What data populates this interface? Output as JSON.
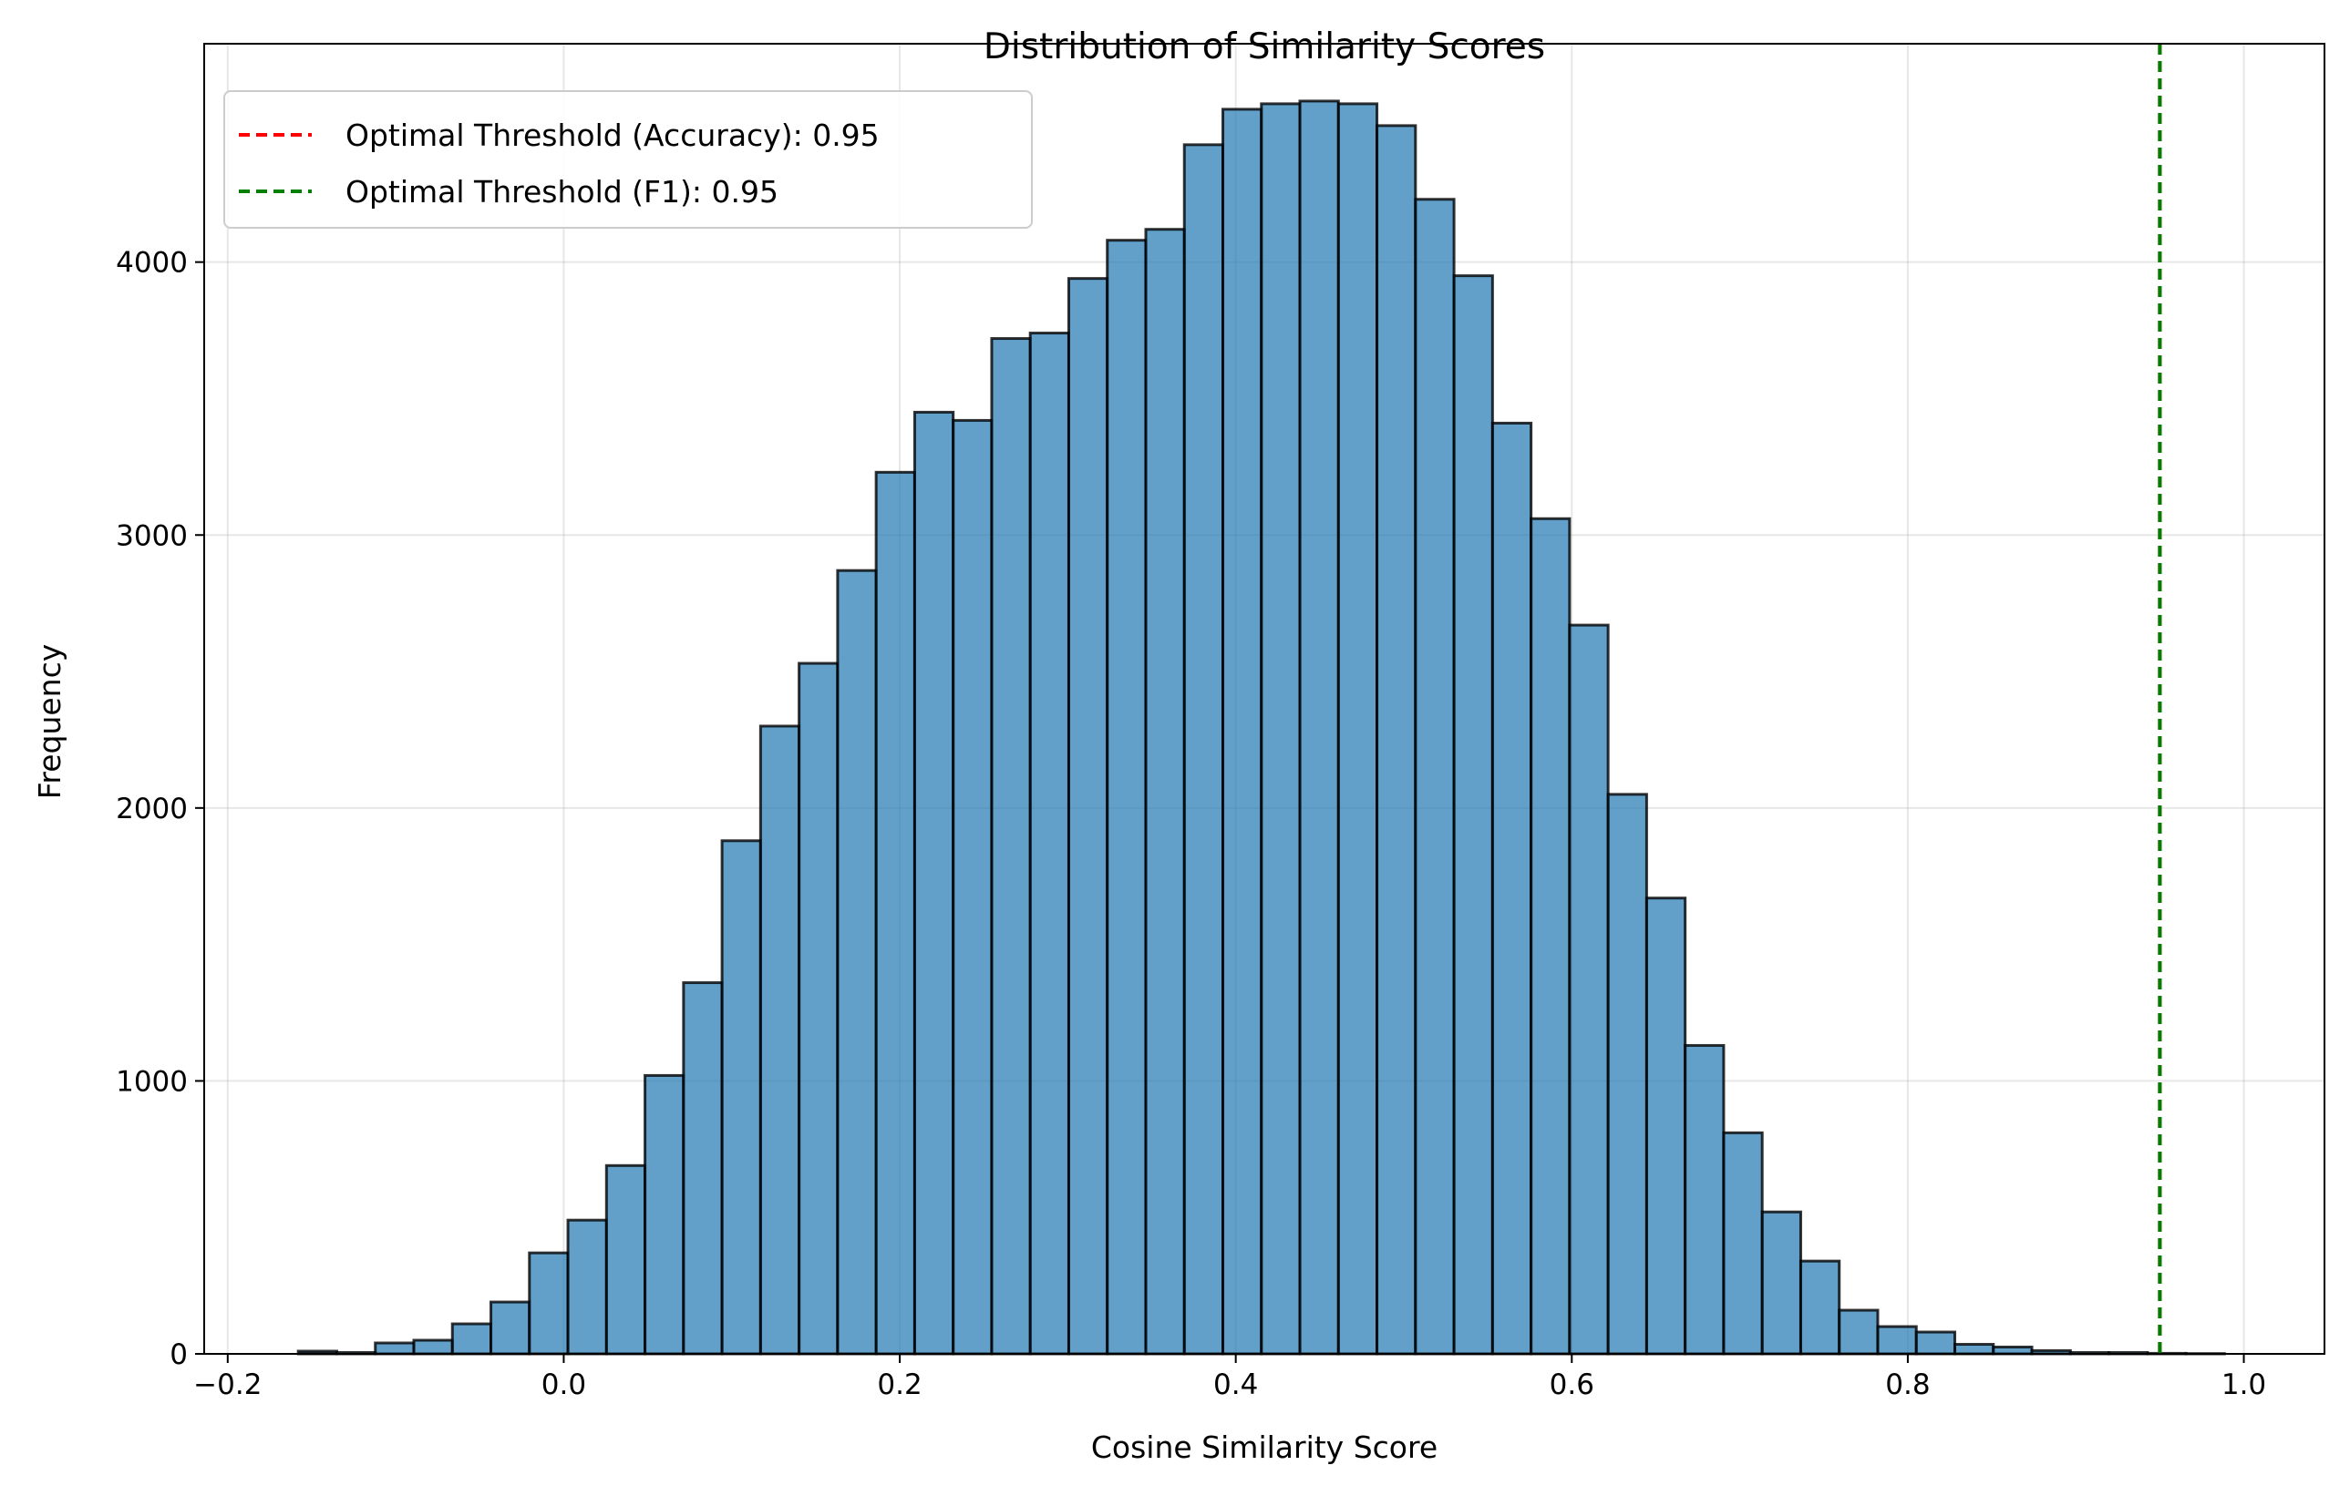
{
  "chart_data": {
    "type": "bar",
    "title": "Distribution of Similarity Scores",
    "xlabel": "Cosine Similarity Score",
    "ylabel": "Frequency",
    "xlim": [
      -0.214,
      1.048
    ],
    "ylim": [
      0,
      4800
    ],
    "grid": true,
    "legend_position": "top-left",
    "bar_color": "#1f77b4",
    "bar_alpha": 0.7,
    "edge_color": "#000000",
    "x_ticks": [
      -0.2,
      0.0,
      0.2,
      0.4,
      0.6,
      0.8,
      1.0
    ],
    "x_tick_labels": [
      "−0.2",
      "0.0",
      "0.2",
      "0.4",
      "0.6",
      "0.8",
      "1.0"
    ],
    "y_ticks": [
      0,
      1000,
      2000,
      3000,
      4000
    ],
    "y_tick_labels": [
      "0",
      "1000",
      "2000",
      "3000",
      "4000"
    ],
    "bin_start": -0.158,
    "bin_width": 0.02293,
    "values": [
      10,
      5,
      40,
      50,
      110,
      190,
      370,
      490,
      690,
      1020,
      1360,
      1880,
      2300,
      2530,
      2870,
      3230,
      3450,
      3420,
      3720,
      3740,
      3940,
      4080,
      4120,
      4430,
      4560,
      4580,
      4590,
      4580,
      4500,
      4230,
      3950,
      3410,
      3060,
      2670,
      2050,
      1670,
      1130,
      810,
      520,
      340,
      160,
      100,
      80,
      35,
      25,
      12,
      5,
      5,
      2,
      1
    ],
    "threshold_lines": [
      {
        "name": "Optimal Threshold (Accuracy): 0.95",
        "x": 0.95,
        "color": "#ff0000"
      },
      {
        "name": "Optimal Threshold (F1): 0.95",
        "x": 0.95,
        "color": "#008000"
      }
    ]
  }
}
